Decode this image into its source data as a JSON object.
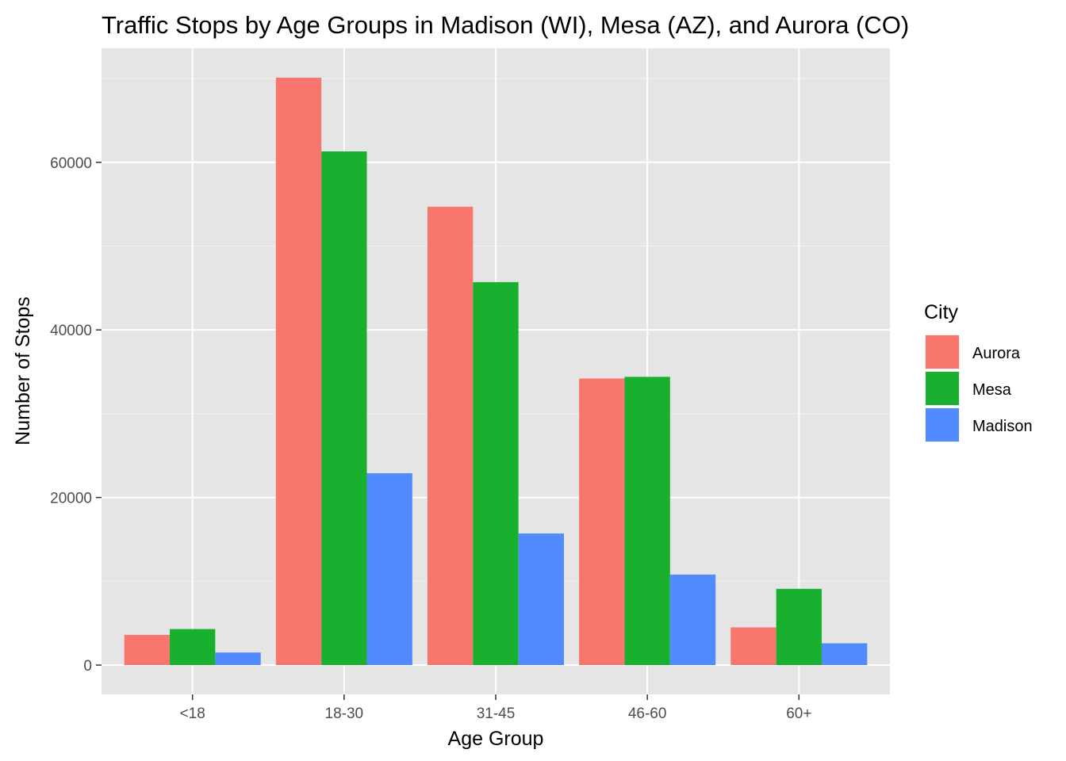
{
  "chart_data": {
    "type": "bar",
    "title": "Traffic Stops by Age Groups in Madison (WI), Mesa (AZ), and Aurora (CO)",
    "xlabel": "Age Group",
    "ylabel": "Number of Stops",
    "categories": [
      "<18",
      "18-30",
      "31-45",
      "46-60",
      "60+"
    ],
    "series": [
      {
        "name": "Aurora",
        "color": "#F8766D",
        "values": [
          3600,
          70100,
          54700,
          34200,
          4500
        ]
      },
      {
        "name": "Mesa",
        "color": "#1AB02F",
        "values": [
          4300,
          61300,
          45700,
          34400,
          9100
        ]
      },
      {
        "name": "Madison",
        "color": "#528BFF",
        "values": [
          1500,
          22900,
          15700,
          10800,
          2600
        ]
      }
    ],
    "ylim": [
      -3500,
      73600
    ],
    "yticks": [
      0,
      20000,
      40000,
      60000
    ],
    "ytick_labels": [
      "0",
      "20000",
      "40000",
      "60000"
    ],
    "grid": true,
    "panel_background": "#E5E5E5",
    "legend": {
      "title": "City",
      "placement": "right"
    }
  }
}
